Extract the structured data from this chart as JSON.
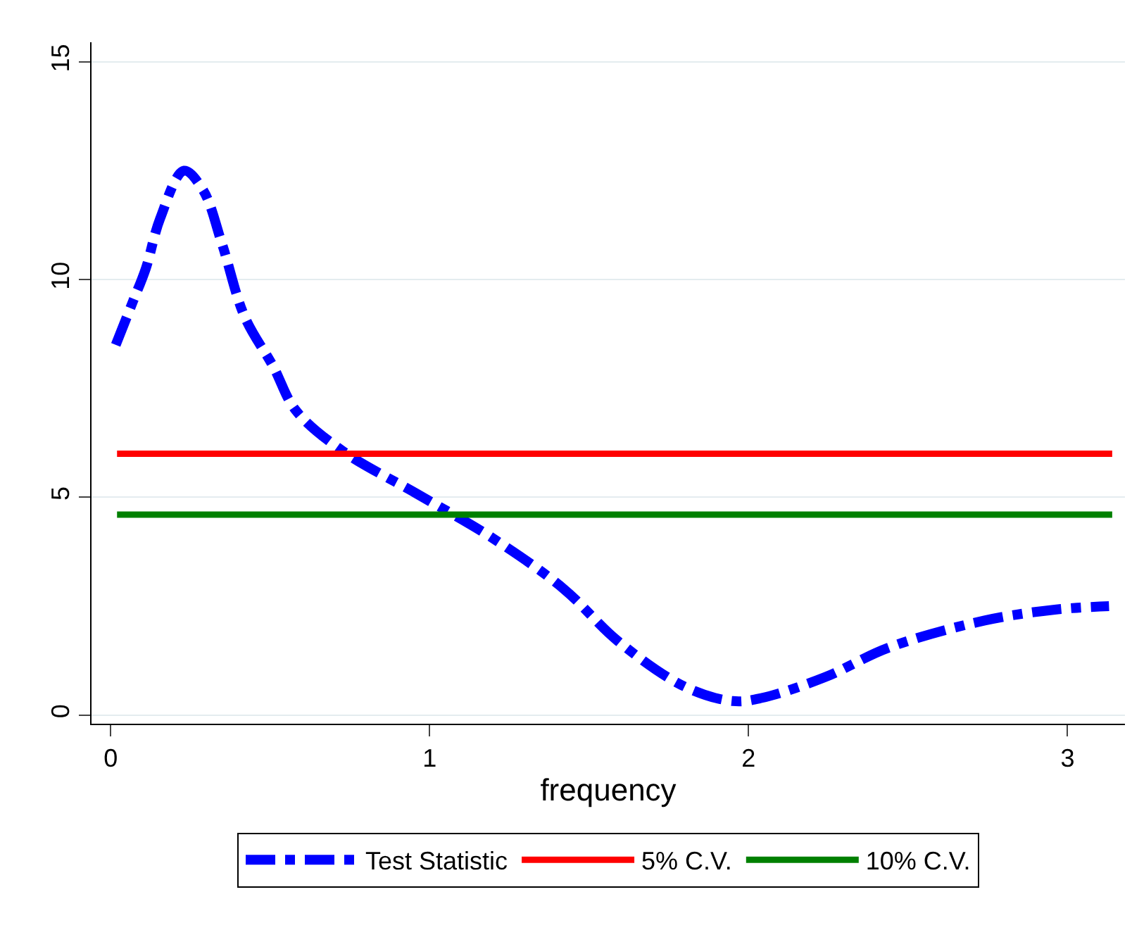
{
  "chart_data": {
    "type": "line",
    "xlabel": "frequency",
    "xlim": [
      -0.06,
      3.18
    ],
    "ylim": [
      -0.2,
      15.45
    ],
    "xticks": [
      0,
      1,
      2,
      3
    ],
    "yticks": [
      0,
      5,
      10,
      15
    ],
    "grid": "y",
    "legend": "bottom",
    "marker": "none",
    "series": [
      {
        "name": "Test Statistic",
        "color": "#0000ff",
        "line_style": "dashdot",
        "x": [
          0.016,
          0.07,
          0.11,
          0.155,
          0.23,
          0.29,
          0.35,
          0.42,
          0.51,
          0.58,
          0.73,
          0.96,
          1.2,
          1.42,
          1.59,
          1.8,
          1.95,
          2.04,
          2.24,
          2.44,
          2.74,
          2.96,
          3.13
        ],
        "values": [
          8.5,
          9.5,
          10.25,
          11.4,
          12.5,
          12.05,
          10.8,
          9.15,
          8.0,
          7.0,
          6.05,
          5.08,
          4.05,
          2.9,
          1.7,
          0.65,
          0.32,
          0.39,
          0.87,
          1.55,
          2.17,
          2.42,
          2.5
        ]
      },
      {
        "name": "5% C.V.",
        "color": "#ff0000",
        "line_style": "solid",
        "x": [
          0.02,
          3.14
        ],
        "values": [
          6.0,
          6.0
        ]
      },
      {
        "name": "10% C.V.",
        "color": "#008000",
        "line_style": "solid",
        "x": [
          0.02,
          3.14
        ],
        "values": [
          4.6,
          4.6
        ]
      }
    ]
  }
}
